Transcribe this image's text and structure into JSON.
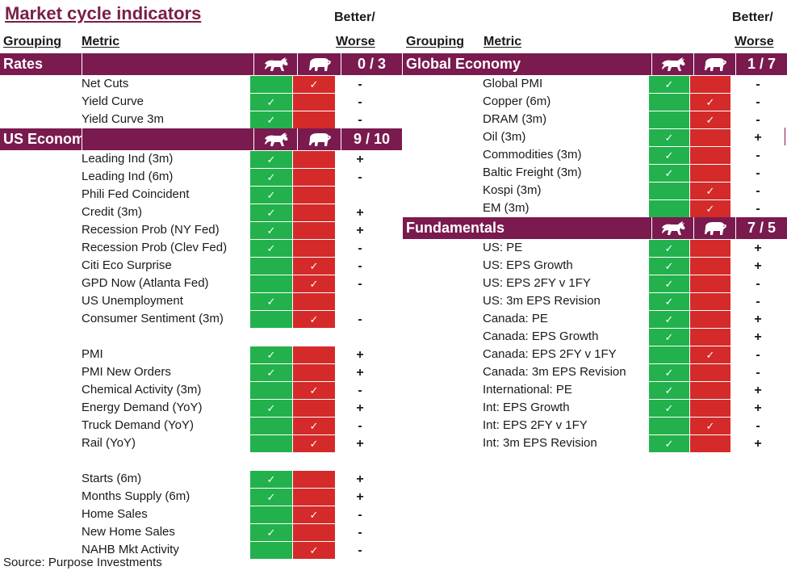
{
  "title": "Market cycle indicators",
  "headers": {
    "grouping": "Grouping",
    "metric": "Metric",
    "better": "Better/",
    "worse": "Worse"
  },
  "colors": {
    "bull": "#22b14c",
    "bear": "#d42a2a",
    "group_bar": "#7a1a4e",
    "title": "#7a1f47"
  },
  "icons": {
    "bull": "bull-icon",
    "bear": "bear-icon",
    "check": "check-icon"
  },
  "check_glyph": "✓",
  "source": "Source: Purpose Investments",
  "left_groups": [
    {
      "name": "Rates",
      "score": "0 / 3",
      "rows": [
        {
          "metric": "Net Cuts",
          "signal": "bear",
          "change": "-"
        },
        {
          "metric": "Yield Curve",
          "signal": "bull",
          "change": "-"
        },
        {
          "metric": "Yield Curve 3m",
          "signal": "bull",
          "change": "-"
        }
      ]
    },
    {
      "name": "US Economy",
      "score": "9 / 10",
      "rows": [
        {
          "metric": "Leading Ind (3m)",
          "signal": "bull",
          "change": "+"
        },
        {
          "metric": "Leading Ind (6m)",
          "signal": "bull",
          "change": "-"
        },
        {
          "metric": "Phili Fed Coincident",
          "signal": "bull",
          "change": ""
        },
        {
          "metric": "Credit (3m)",
          "signal": "bull",
          "change": "+"
        },
        {
          "metric": "Recession Prob (NY Fed)",
          "signal": "bull",
          "change": "+"
        },
        {
          "metric": "Recession Prob (Clev Fed)",
          "signal": "bull",
          "change": "-"
        },
        {
          "metric": "Citi Eco Surprise",
          "signal": "bear",
          "change": "-"
        },
        {
          "metric": "GPD Now (Atlanta Fed)",
          "signal": "bear",
          "change": "-"
        },
        {
          "metric": "US Unemployment",
          "signal": "bull",
          "change": ""
        },
        {
          "metric": "Consumer Sentiment (3m)",
          "signal": "bear",
          "change": "-"
        },
        {
          "spacer": true
        },
        {
          "metric": "PMI",
          "signal": "bull",
          "change": "+"
        },
        {
          "metric": "PMI New Orders",
          "signal": "bull",
          "change": "+"
        },
        {
          "metric": "Chemical Activity (3m)",
          "signal": "bear",
          "change": "-"
        },
        {
          "metric": "Energy Demand (YoY)",
          "signal": "bull",
          "change": "+"
        },
        {
          "metric": "Truck Demand (YoY)",
          "signal": "bear",
          "change": "-"
        },
        {
          "metric": "Rail (YoY)",
          "signal": "bear",
          "change": "+"
        },
        {
          "spacer": true
        },
        {
          "metric": "Starts (6m)",
          "signal": "bull",
          "change": "+"
        },
        {
          "metric": "Months Supply (6m)",
          "signal": "bull",
          "change": "+"
        },
        {
          "metric": "Home Sales",
          "signal": "bear",
          "change": "-"
        },
        {
          "metric": "New Home Sales",
          "signal": "bull",
          "change": "-"
        },
        {
          "metric": "NAHB Mkt Activity",
          "signal": "bear",
          "change": "-"
        }
      ]
    }
  ],
  "right_groups": [
    {
      "name": "Global Economy",
      "score": "1 / 7",
      "rows": [
        {
          "metric": "Global PMI",
          "signal": "bull",
          "change": "-"
        },
        {
          "metric": "Copper (6m)",
          "signal": "bear",
          "change": "-"
        },
        {
          "metric": "DRAM (3m)",
          "signal": "bear",
          "change": "-"
        },
        {
          "metric": "Oil (3m)",
          "signal": "bull",
          "change": "+"
        },
        {
          "metric": "Commodities (3m)",
          "signal": "bull",
          "change": "-"
        },
        {
          "metric": "Baltic Freight (3m)",
          "signal": "bull",
          "change": "-"
        },
        {
          "metric": "Kospi (3m)",
          "signal": "bear",
          "change": "-"
        },
        {
          "metric": "EM (3m)",
          "signal": "bear",
          "change": "-"
        }
      ]
    },
    {
      "name": "Fundamentals",
      "score": "7 / 5",
      "rows": [
        {
          "metric": "US: PE",
          "signal": "bull",
          "change": "+"
        },
        {
          "metric": "US: EPS Growth",
          "signal": "bull",
          "change": "+"
        },
        {
          "metric": "US: EPS 2FY v 1FY",
          "signal": "bull",
          "change": "-"
        },
        {
          "metric": "US: 3m EPS Revision",
          "signal": "bull",
          "change": "-"
        },
        {
          "metric": "Canada: PE",
          "signal": "bull",
          "change": "+"
        },
        {
          "metric": "Canada: EPS Growth",
          "signal": "bull",
          "change": "+"
        },
        {
          "metric": "Canada: EPS 2FY v 1FY",
          "signal": "bear",
          "change": "-"
        },
        {
          "metric": "Canada: 3m EPS Revision",
          "signal": "bull",
          "change": "-"
        },
        {
          "metric": "International: PE",
          "signal": "bull",
          "change": "+"
        },
        {
          "metric": "Int: EPS Growth",
          "signal": "bull",
          "change": "+"
        },
        {
          "metric": "Int: EPS 2FY v 1FY",
          "signal": "bear",
          "change": "-"
        },
        {
          "metric": "Int: 3m EPS Revision",
          "signal": "bull",
          "change": "+"
        }
      ]
    }
  ]
}
